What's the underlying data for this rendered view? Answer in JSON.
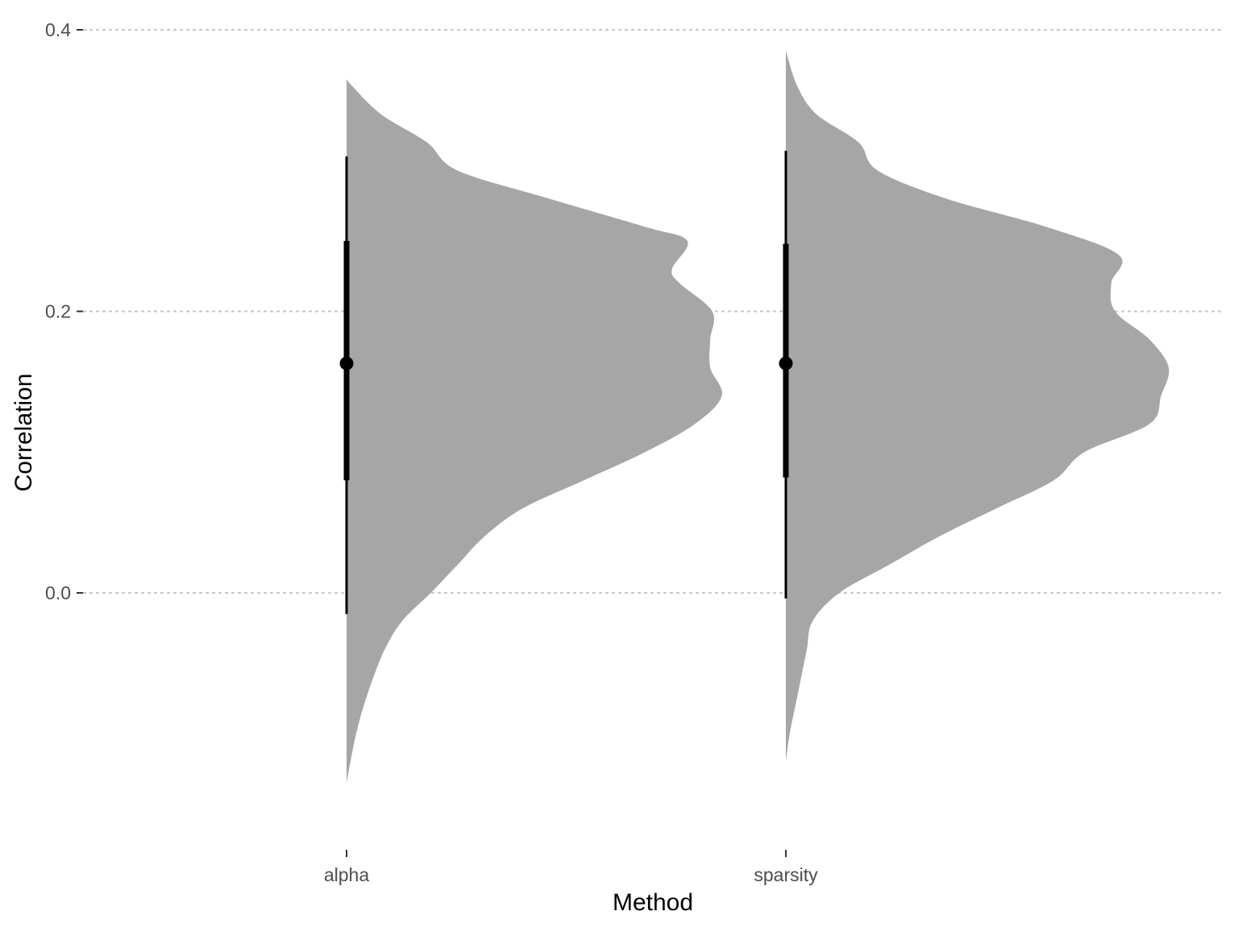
{
  "chart_data": {
    "type": "halfeye",
    "title": "",
    "xlabel": "Method",
    "ylabel": "Correlation",
    "ylim": [
      -0.175,
      0.4
    ],
    "y_ticks": [
      0.0,
      0.2,
      0.4
    ],
    "y_tick_labels": [
      "0.0",
      "0.2",
      "0.4"
    ],
    "grid": "horizontal dotted",
    "colors": {
      "density_fill": "#a6a6a6",
      "interval": "#000000",
      "grid": "#c8c8c8",
      "tick_label": "#4d4d4d"
    },
    "categories": [
      "alpha",
      "sparsity"
    ],
    "series": [
      {
        "category": "alpha",
        "median": 0.163,
        "interval_66": [
          0.08,
          0.25
        ],
        "interval_95": [
          -0.015,
          0.31
        ],
        "density": [
          [
            -0.135,
            0.0
          ],
          [
            -0.12,
            0.01
          ],
          [
            -0.1,
            0.025
          ],
          [
            -0.08,
            0.045
          ],
          [
            -0.06,
            0.07
          ],
          [
            -0.04,
            0.1
          ],
          [
            -0.02,
            0.145
          ],
          [
            0.0,
            0.22
          ],
          [
            0.02,
            0.29
          ],
          [
            0.04,
            0.36
          ],
          [
            0.06,
            0.46
          ],
          [
            0.08,
            0.62
          ],
          [
            0.1,
            0.78
          ],
          [
            0.12,
            0.91
          ],
          [
            0.14,
            0.98
          ],
          [
            0.16,
            0.95
          ],
          [
            0.18,
            0.95
          ],
          [
            0.2,
            0.955
          ],
          [
            0.22,
            0.87
          ],
          [
            0.23,
            0.85
          ],
          [
            0.25,
            0.89
          ],
          [
            0.26,
            0.78
          ],
          [
            0.28,
            0.53
          ],
          [
            0.3,
            0.29
          ],
          [
            0.32,
            0.21
          ],
          [
            0.34,
            0.09
          ],
          [
            0.36,
            0.015
          ],
          [
            0.365,
            0.0
          ]
        ]
      },
      {
        "category": "sparsity",
        "median": 0.163,
        "interval_66": [
          0.082,
          0.248
        ],
        "interval_95": [
          -0.004,
          0.314
        ],
        "density": [
          [
            -0.12,
            0.0
          ],
          [
            -0.1,
            0.01
          ],
          [
            -0.08,
            0.025
          ],
          [
            -0.06,
            0.04
          ],
          [
            -0.04,
            0.055
          ],
          [
            -0.02,
            0.07
          ],
          [
            0.0,
            0.14
          ],
          [
            0.02,
            0.27
          ],
          [
            0.04,
            0.4
          ],
          [
            0.06,
            0.55
          ],
          [
            0.08,
            0.7
          ],
          [
            0.1,
            0.78
          ],
          [
            0.12,
            0.95
          ],
          [
            0.14,
            0.98
          ],
          [
            0.16,
            1.0
          ],
          [
            0.18,
            0.95
          ],
          [
            0.2,
            0.86
          ],
          [
            0.22,
            0.85
          ],
          [
            0.24,
            0.87
          ],
          [
            0.26,
            0.68
          ],
          [
            0.28,
            0.42
          ],
          [
            0.3,
            0.24
          ],
          [
            0.32,
            0.19
          ],
          [
            0.34,
            0.08
          ],
          [
            0.36,
            0.03
          ],
          [
            0.385,
            0.0
          ]
        ]
      }
    ]
  }
}
